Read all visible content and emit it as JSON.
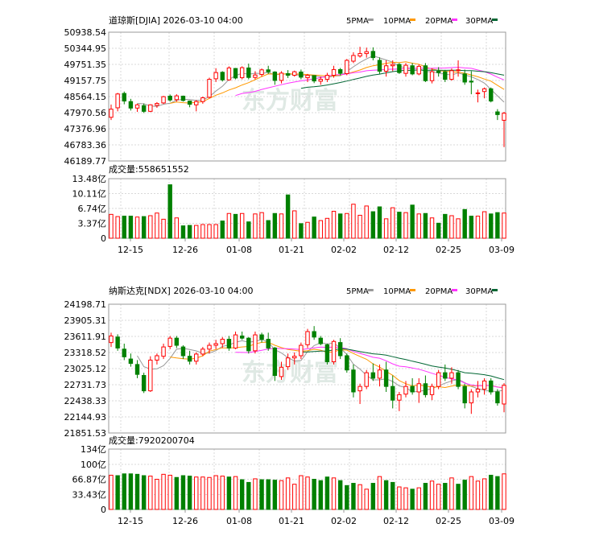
{
  "charts": [
    {
      "title": "道琼斯[DJIA] 2026-03-10 04:00",
      "legend": [
        "5PMA",
        "10PMA",
        "20PMA",
        "30PMA"
      ],
      "legend_colors": [
        "#999999",
        "#ff9900",
        "#ff33ff",
        "#006633"
      ],
      "volume_label": "成交量:558651552",
      "watermark": "东方财富",
      "price_ticks": [
        "50938.54",
        "50344.95",
        "49751.35",
        "49157.75",
        "48564.15",
        "47970.56",
        "47376.96",
        "46783.36",
        "46189.77"
      ],
      "volume_ticks": [
        "13.48亿",
        "10.11亿",
        "6.74亿",
        "3.37亿",
        "0"
      ],
      "date_ticks": [
        "12-15",
        "12-26",
        "01-08",
        "01-21",
        "02-02",
        "02-12",
        "02-25",
        "03-09"
      ]
    },
    {
      "title": "纳斯达克[NDX] 2026-03-10 04:00",
      "legend": [
        "5PMA",
        "10PMA",
        "20PMA",
        "30PMA"
      ],
      "legend_colors": [
        "#999999",
        "#ff9900",
        "#ff33ff",
        "#006633"
      ],
      "volume_label": "成交量:7920200704",
      "watermark": "东方财富",
      "price_ticks": [
        "24198.71",
        "23905.31",
        "23611.91",
        "23318.52",
        "23025.12",
        "22731.73",
        "22438.33",
        "22144.93",
        "21851.53"
      ],
      "volume_ticks": [
        "134亿",
        "100亿",
        "66.87亿",
        "33.43亿",
        "0"
      ],
      "date_ticks": [
        "12-15",
        "12-26",
        "01-08",
        "01-21",
        "02-02",
        "02-12",
        "02-25",
        "03-09"
      ]
    }
  ],
  "chart_data": [
    {
      "type": "candlestick",
      "title": "道琼斯[DJIA] 2026-03-10 04:00",
      "ylim": [
        46189.77,
        50938.54
      ],
      "volume_ylim": [
        0,
        13.48
      ],
      "volume_unit": "亿",
      "up_color": "#ff0000",
      "down_color": "#008000",
      "ohlc": [
        [
          47800,
          48270,
          47700,
          48100
        ],
        [
          48150,
          48700,
          48020,
          48660
        ],
        [
          48680,
          48750,
          48280,
          48400
        ],
        [
          48380,
          48480,
          48050,
          48140
        ],
        [
          48140,
          48300,
          48000,
          48260
        ],
        [
          48230,
          48310,
          47960,
          48020
        ],
        [
          48020,
          48280,
          47990,
          48260
        ],
        [
          48240,
          48360,
          48150,
          48310
        ],
        [
          48330,
          48590,
          48290,
          48560
        ],
        [
          48580,
          48640,
          48380,
          48440
        ],
        [
          48450,
          48650,
          48380,
          48590
        ],
        [
          48580,
          48600,
          48380,
          48420
        ],
        [
          48400,
          48420,
          48170,
          48280
        ],
        [
          48260,
          48440,
          48020,
          48380
        ],
        [
          48380,
          48560,
          48300,
          48520
        ],
        [
          48540,
          49260,
          48500,
          49200
        ],
        [
          49220,
          49610,
          49100,
          49450
        ],
        [
          49460,
          49500,
          49120,
          49180
        ],
        [
          49180,
          49680,
          49150,
          49620
        ],
        [
          49600,
          49620,
          49200,
          49250
        ],
        [
          49260,
          49680,
          49200,
          49630
        ],
        [
          49620,
          49780,
          49200,
          49270
        ],
        [
          49270,
          49500,
          49200,
          49360
        ],
        [
          49380,
          49600,
          49300,
          49550
        ],
        [
          49550,
          49700,
          49400,
          49480
        ],
        [
          49470,
          49500,
          49000,
          49160
        ],
        [
          49160,
          49500,
          49050,
          49430
        ],
        [
          49410,
          49540,
          49250,
          49350
        ],
        [
          49350,
          49520,
          49300,
          49480
        ],
        [
          49470,
          49560,
          49200,
          49280
        ],
        [
          49260,
          49400,
          49100,
          49350
        ],
        [
          49340,
          49350,
          49060,
          49140
        ],
        [
          49130,
          49300,
          49000,
          49200
        ],
        [
          49200,
          49440,
          49100,
          49350
        ],
        [
          49350,
          49700,
          49260,
          49560
        ],
        [
          49560,
          49620,
          49350,
          49420
        ],
        [
          49410,
          49950,
          49350,
          49900
        ],
        [
          49870,
          50200,
          49800,
          50080
        ],
        [
          50060,
          50400,
          50000,
          50150
        ],
        [
          50150,
          50370,
          50000,
          50220
        ],
        [
          50230,
          50380,
          49900,
          50000
        ],
        [
          49900,
          50010,
          49400,
          49500
        ],
        [
          49500,
          49900,
          49300,
          49700
        ],
        [
          49700,
          49900,
          49500,
          49750
        ],
        [
          49750,
          49800,
          49400,
          49450
        ],
        [
          49420,
          49800,
          49300,
          49720
        ],
        [
          49700,
          49800,
          49350,
          49400
        ],
        [
          49400,
          49750,
          49350,
          49680
        ],
        [
          49700,
          49800,
          49100,
          49150
        ],
        [
          49150,
          49600,
          49050,
          49480
        ],
        [
          49500,
          49650,
          49300,
          49450
        ],
        [
          49480,
          49550,
          49100,
          49200
        ],
        [
          49200,
          49600,
          49150,
          49520
        ],
        [
          49550,
          49900,
          49300,
          49550
        ],
        [
          49400,
          49560,
          49000,
          49100
        ],
        [
          49130,
          49500,
          48650,
          49100
        ],
        [
          48700,
          48820,
          48350,
          48700
        ],
        [
          48750,
          48900,
          48500,
          48850
        ],
        [
          48850,
          48900,
          48350,
          48400
        ],
        [
          48000,
          48100,
          47700,
          47900
        ],
        [
          47690,
          48000,
          46700,
          47950
        ]
      ],
      "volume": [
        5.4,
        4.9,
        5.0,
        5.0,
        4.8,
        4.9,
        5.1,
        5.7,
        4.3,
        12.1,
        4.6,
        2.8,
        2.9,
        2.9,
        3.1,
        3.1,
        3.1,
        3.9,
        5.6,
        5.4,
        5.6,
        3.7,
        5.5,
        5.8,
        4.0,
        5.6,
        5.5,
        9.8,
        6.2,
        3.3,
        3.6,
        4.8,
        4.0,
        4.5,
        6.1,
        5.5,
        5.6,
        7.7,
        5.2,
        7.3,
        6.0,
        7.1,
        4.4,
        6.9,
        5.9,
        5.8,
        7.5,
        5.5,
        5.6,
        4.6,
        3.4,
        5.4,
        5.1,
        4.4,
        6.5,
        5.0,
        5.0,
        6.0,
        5.5,
        5.8,
        5.7
      ]
    },
    {
      "type": "candlestick",
      "title": "纳斯达克[NDX] 2026-03-10 04:00",
      "ylim": [
        21851.53,
        24198.71
      ],
      "volume_ylim": [
        0,
        134
      ],
      "volume_unit": "亿",
      "up_color": "#ff0000",
      "down_color": "#008000",
      "ohlc": [
        [
          23500,
          23680,
          23420,
          23620
        ],
        [
          23600,
          23650,
          23350,
          23400
        ],
        [
          23380,
          23480,
          23180,
          23240
        ],
        [
          23200,
          23300,
          23060,
          23120
        ],
        [
          23100,
          23180,
          22850,
          22920
        ],
        [
          22900,
          22950,
          22580,
          22620
        ],
        [
          22620,
          23250,
          22600,
          23180
        ],
        [
          23180,
          23300,
          23100,
          23260
        ],
        [
          23250,
          23480,
          23200,
          23420
        ],
        [
          23430,
          23620,
          23380,
          23580
        ],
        [
          23580,
          23620,
          23400,
          23450
        ],
        [
          23420,
          23450,
          23200,
          23260
        ],
        [
          23250,
          23350,
          23100,
          23160
        ],
        [
          23160,
          23320,
          23100,
          23290
        ],
        [
          23290,
          23420,
          23250,
          23380
        ],
        [
          23380,
          23500,
          23300,
          23450
        ],
        [
          23450,
          23550,
          23380,
          23480
        ],
        [
          23480,
          23600,
          23400,
          23560
        ],
        [
          23560,
          23620,
          23350,
          23400
        ],
        [
          23400,
          23700,
          23380,
          23640
        ],
        [
          23620,
          23700,
          23550,
          23580
        ],
        [
          23580,
          23600,
          23300,
          23350
        ],
        [
          23350,
          23700,
          23300,
          23640
        ],
        [
          23640,
          23680,
          23500,
          23560
        ],
        [
          23560,
          23680,
          23350,
          23400
        ],
        [
          23400,
          23420,
          22800,
          22900
        ],
        [
          22880,
          23150,
          22820,
          23050
        ],
        [
          23060,
          23300,
          23000,
          23220
        ],
        [
          23220,
          23320,
          23100,
          23250
        ],
        [
          23260,
          23500,
          23200,
          23450
        ],
        [
          23460,
          23750,
          23400,
          23700
        ],
        [
          23700,
          23800,
          23550,
          23600
        ],
        [
          23580,
          23620,
          23450,
          23480
        ],
        [
          23460,
          23480,
          23100,
          23150
        ],
        [
          23150,
          23550,
          23100,
          23520
        ],
        [
          23500,
          23580,
          23200,
          23260
        ],
        [
          23260,
          23300,
          22950,
          23000
        ],
        [
          23000,
          23100,
          22500,
          22600
        ],
        [
          22620,
          22750,
          22380,
          22700
        ],
        [
          22700,
          23000,
          22650,
          22950
        ],
        [
          22950,
          23120,
          22800,
          22850
        ],
        [
          22850,
          23100,
          22700,
          23000
        ],
        [
          23000,
          23150,
          22600,
          22700
        ],
        [
          22700,
          22900,
          22300,
          22450
        ],
        [
          22450,
          22600,
          22250,
          22550
        ],
        [
          22560,
          22800,
          22500,
          22700
        ],
        [
          22700,
          22850,
          22550,
          22600
        ],
        [
          22600,
          22850,
          22400,
          22750
        ],
        [
          22750,
          22900,
          22500,
          22550
        ],
        [
          22550,
          22750,
          22450,
          22700
        ],
        [
          22700,
          23000,
          22650,
          22950
        ],
        [
          22950,
          23100,
          22800,
          22850
        ],
        [
          22850,
          23050,
          22750,
          22950
        ],
        [
          22950,
          23000,
          22650,
          22700
        ],
        [
          22700,
          22750,
          22300,
          22400
        ],
        [
          22400,
          22650,
          22200,
          22600
        ],
        [
          22600,
          22800,
          22500,
          22650
        ],
        [
          22650,
          22850,
          22550,
          22800
        ],
        [
          22800,
          22850,
          22550,
          22600
        ],
        [
          22600,
          22650,
          22350,
          22400
        ],
        [
          22380,
          22760,
          22230,
          22720
        ]
      ],
      "volume": [
        76,
        75,
        79,
        79,
        78,
        75,
        74,
        67,
        78,
        76,
        71,
        75,
        74,
        72,
        72,
        71,
        75,
        74,
        72,
        73,
        66,
        60,
        68,
        66,
        66,
        65,
        64,
        70,
        56,
        75,
        72,
        67,
        64,
        72,
        70,
        64,
        53,
        58,
        55,
        45,
        58,
        73,
        64,
        60,
        50,
        48,
        45,
        48,
        58,
        63,
        56,
        58,
        70,
        56,
        65,
        73,
        63,
        68,
        76,
        73,
        79
      ]
    }
  ]
}
